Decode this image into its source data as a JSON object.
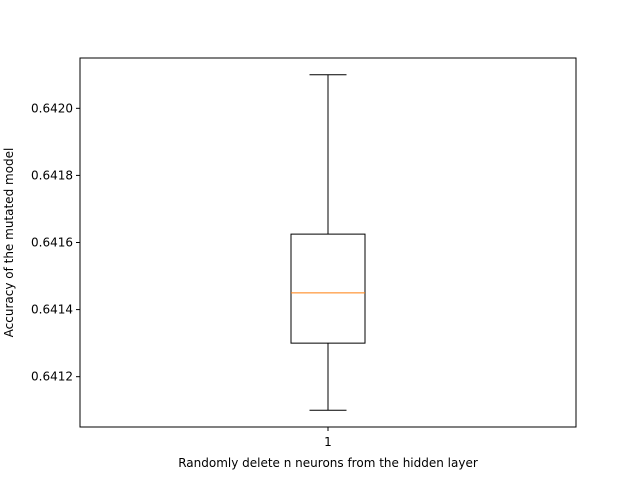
{
  "chart_data": {
    "type": "box",
    "title": "",
    "xlabel": "Randomly delete n neurons from the hidden layer",
    "ylabel": "Accuracy of the mutated model",
    "categories": [
      "1"
    ],
    "boxes": [
      {
        "category": "1",
        "whisker_low": 0.6411,
        "q1": 0.6413,
        "median": 0.64145,
        "q3": 0.641625,
        "whisker_high": 0.6421
      }
    ],
    "ylim": [
      0.64105,
      0.64215
    ],
    "y_ticks": [
      0.6412,
      0.6414,
      0.6416,
      0.6418,
      0.642
    ],
    "y_tick_labels": [
      "0.6412",
      "0.6414",
      "0.6416",
      "0.6418",
      "0.6420"
    ],
    "grid": false,
    "legend": "none",
    "colors": {
      "box": "#000000",
      "median": "#ff7f0e",
      "axes": "#000000"
    }
  }
}
